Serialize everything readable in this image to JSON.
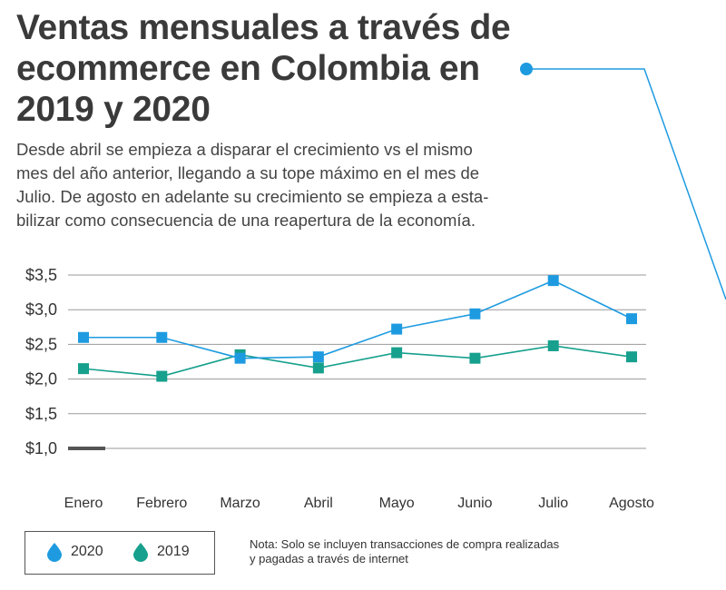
{
  "title": {
    "line1": "Ventas mensuales a través de",
    "line2": "ecommerce en Colombia en",
    "line3": "2019 y 2020"
  },
  "subtitle": {
    "line1": "Desde abril se empieza a disparar el crecimiento vs el mismo",
    "line2": "mes del año anterior, llegando a su tope máximo en el mes de",
    "line3": "Julio. De agosto en adelante su crecimiento se empieza a esta-",
    "line4": "bilizar como consecuencia de una reapertura de la economía."
  },
  "legend": {
    "item_2020": "2020",
    "item_2019": "2019"
  },
  "note": {
    "line1": "Nota: Solo se incluyen transacciones de compra realizadas",
    "line2": "y pagadas a través de internet"
  },
  "colors": {
    "series_2020": "#1e9be0",
    "series_2019": "#16a08d",
    "gridline": "#9a9a9a",
    "connector": "#1e9be0",
    "base_marker": "#555555"
  },
  "chart_data": {
    "type": "line",
    "categories": [
      "Enero",
      "Febrero",
      "Marzo",
      "Abril",
      "Mayo",
      "Junio",
      "Julio",
      "Agosto"
    ],
    "series": [
      {
        "name": "2020",
        "values": [
          2.6,
          2.6,
          2.3,
          2.32,
          2.72,
          2.94,
          3.42,
          2.87
        ]
      },
      {
        "name": "2019",
        "values": [
          2.15,
          2.04,
          2.35,
          2.16,
          2.38,
          2.3,
          2.48,
          2.32
        ]
      }
    ],
    "yticks": [
      "$1,0",
      "$1,5",
      "$2,0",
      "$2,5",
      "$3,0",
      "$3,5"
    ],
    "ytick_values": [
      1.0,
      1.5,
      2.0,
      2.5,
      3.0,
      3.5
    ],
    "ylim": [
      0.5,
      3.5
    ],
    "grid": true,
    "legend_placement": "bottom-left"
  }
}
